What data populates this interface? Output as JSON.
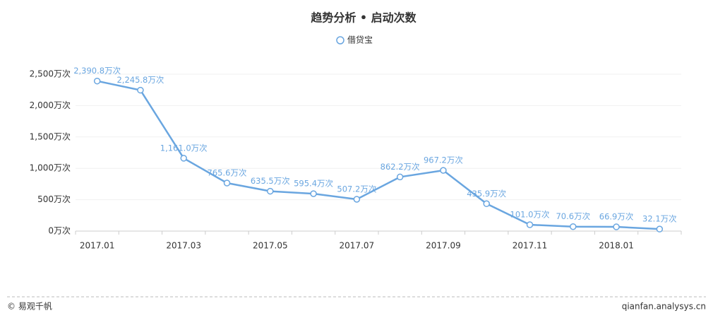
{
  "chart_data": {
    "type": "line",
    "title": "趋势分析 • 启动次数",
    "categories": [
      "2017.01",
      null,
      "2017.03",
      null,
      "2017.05",
      null,
      "2017.07",
      null,
      "2017.09",
      null,
      "2017.11",
      null,
      "2018.01",
      null
    ],
    "series": [
      {
        "name": "借贷宝",
        "color": "#6aa6e0",
        "values": [
          2390.8,
          2245.8,
          1161.0,
          765.6,
          635.5,
          595.4,
          507.2,
          862.2,
          967.2,
          435.9,
          101.0,
          70.6,
          66.9,
          32.1
        ],
        "value_labels": [
          "2,390.8万次",
          "2,245.8万次",
          "1,161.0万次",
          "765.6万次",
          "635.5万次",
          "595.4万次",
          "507.2万次",
          "862.2万次",
          "967.2万次",
          "435.9万次",
          "101.0万次",
          "70.6万次",
          "66.9万次",
          "32.1万次"
        ]
      }
    ],
    "ylim": [
      0,
      2500
    ],
    "yticks": [
      {
        "value": 0,
        "label": "0万次"
      },
      {
        "value": 500,
        "label": "500万次"
      },
      {
        "value": 1000,
        "label": "1,000万次"
      },
      {
        "value": 1500,
        "label": "1,500万次"
      },
      {
        "value": 2000,
        "label": "2,000万次"
      },
      {
        "value": 2500,
        "label": "2,500万次"
      }
    ],
    "grid": true
  },
  "footer": {
    "left": "© 易观千帆",
    "right": "qianfan.analysys.cn"
  }
}
